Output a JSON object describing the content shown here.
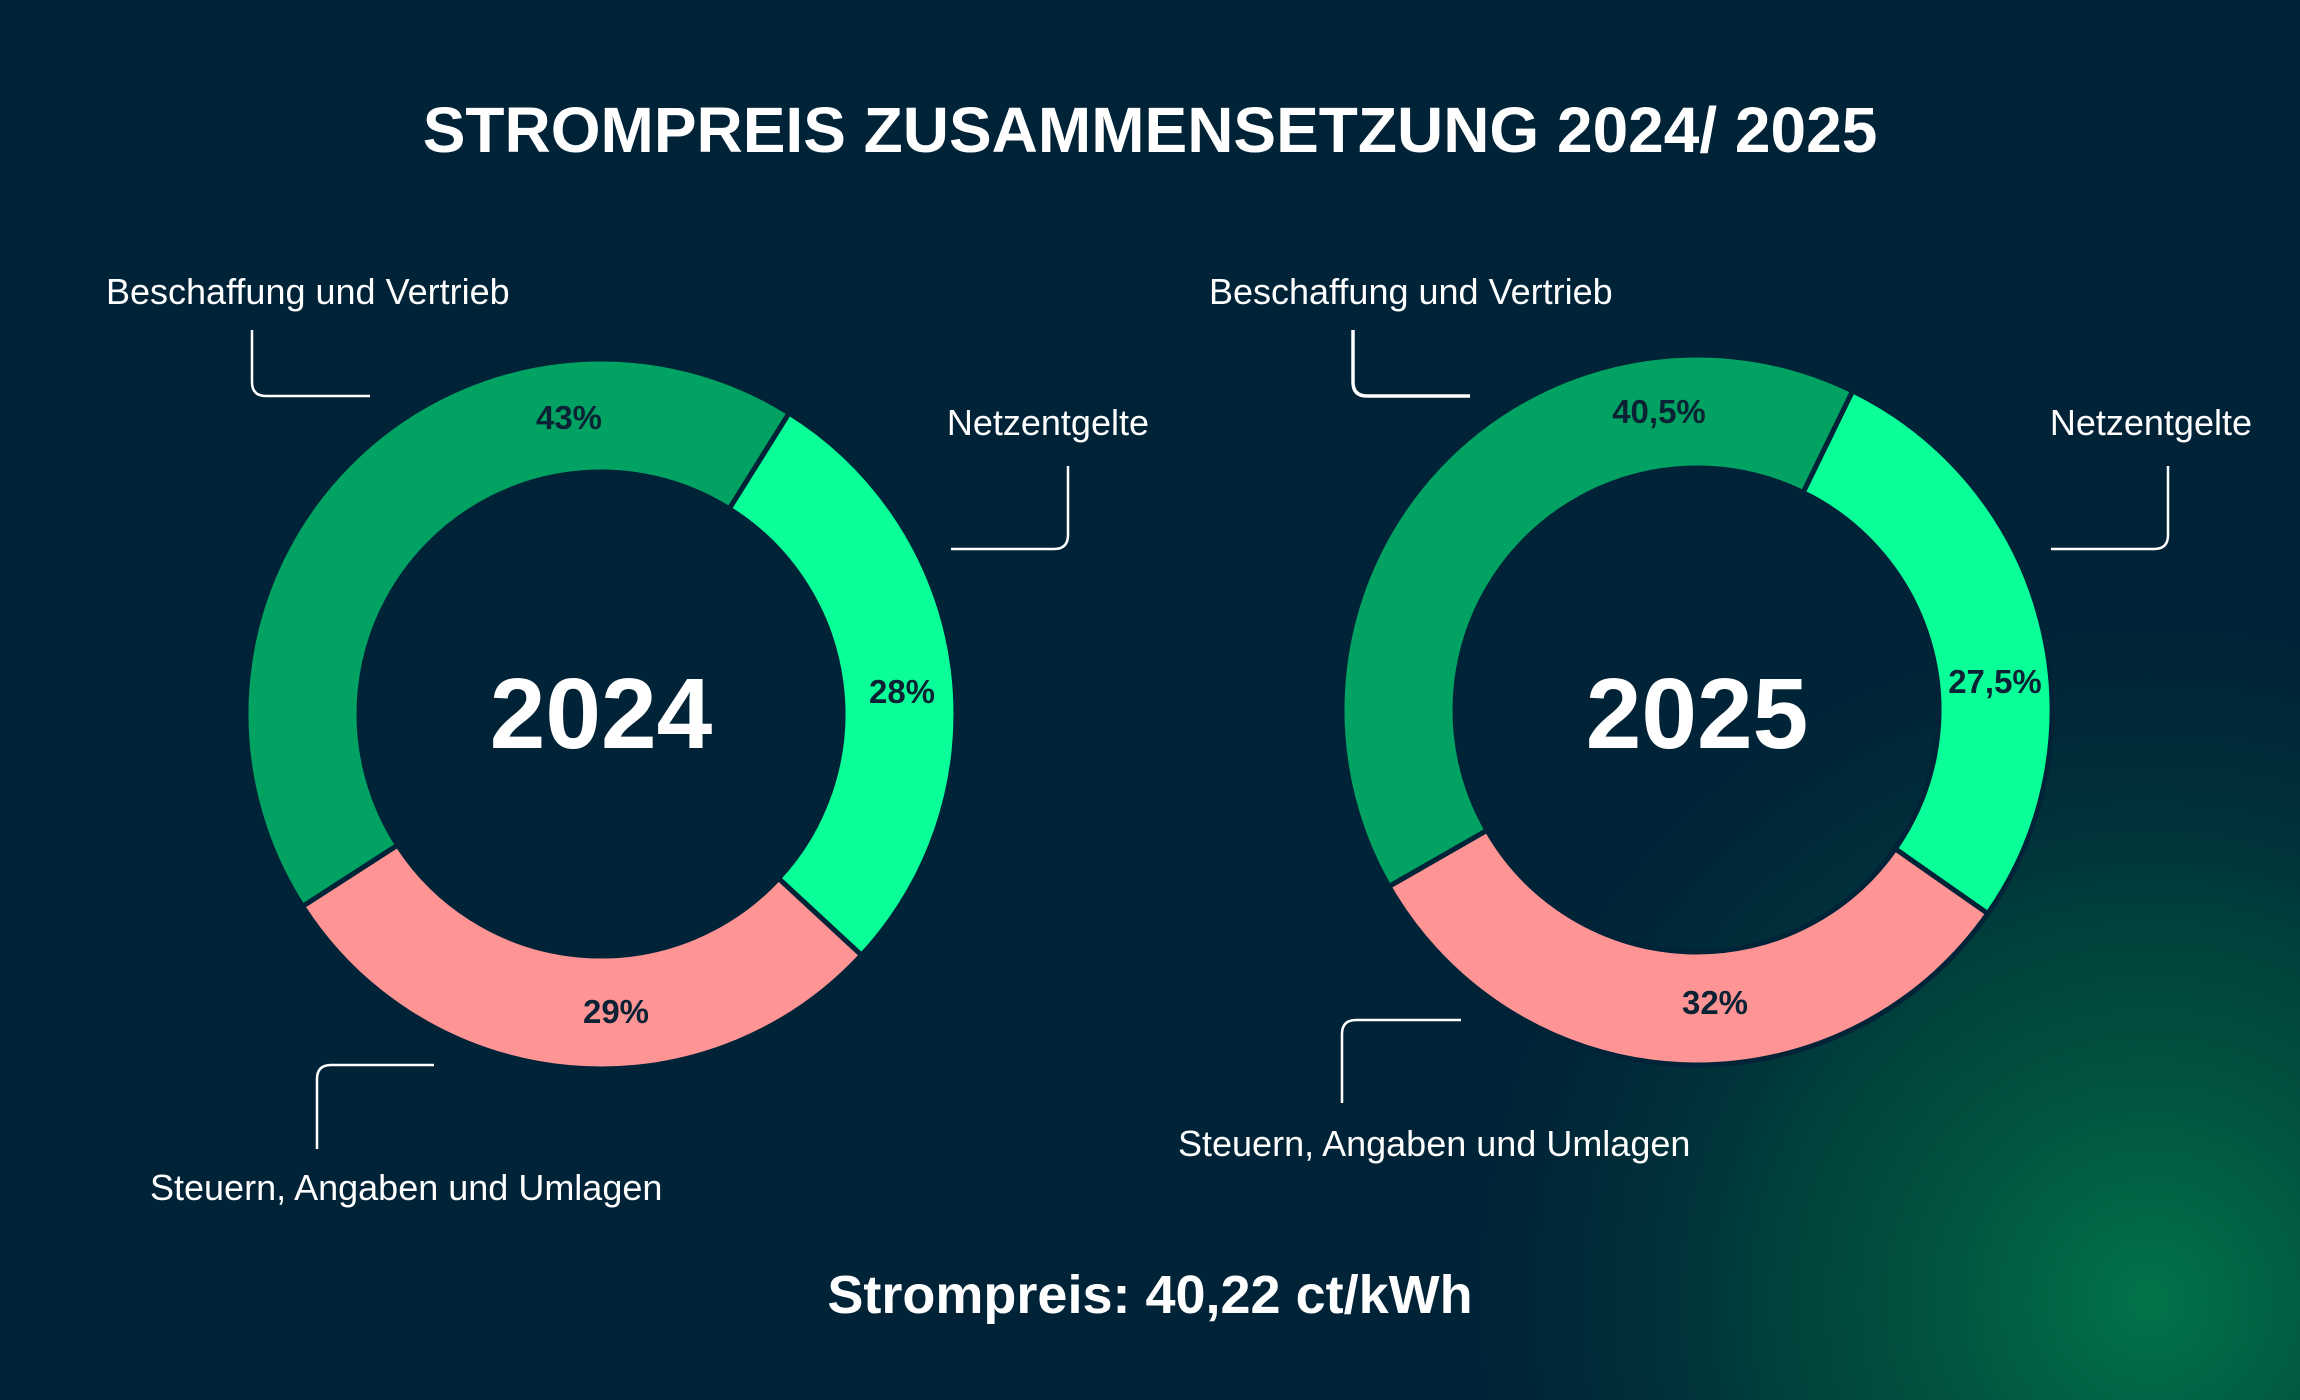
{
  "chart_data": [
    {
      "type": "pie",
      "variant": "donut",
      "title": "2024",
      "categories": [
        "Netzentgelte",
        "Steuern, Angaben und Umlagen",
        "Beschaffung und Vertrieb"
      ],
      "values": [
        28,
        29,
        43
      ],
      "value_labels": [
        "28%",
        "29%",
        "43%"
      ],
      "colors": [
        "#0BFF99",
        "#FF9494",
        "#02A262"
      ]
    },
    {
      "type": "pie",
      "variant": "donut",
      "title": "2025",
      "categories": [
        "Netzentgelte",
        "Steuern, Angaben und Umlagen",
        "Beschaffung und Vertrieb"
      ],
      "values": [
        27.5,
        32,
        40.5
      ],
      "value_labels": [
        "27,5%",
        "32%",
        "40,5%"
      ],
      "colors": [
        "#0BFF99",
        "#FF9494",
        "#02A262"
      ]
    }
  ],
  "title": "STROMPREIS ZUSAMMENSETZUNG 2024/ 2025",
  "footer": "Strompreis: 40,22 ct/kWh",
  "colors": {
    "background": "#002337",
    "glow": "#02744A",
    "label_dark": "#0A2233"
  }
}
